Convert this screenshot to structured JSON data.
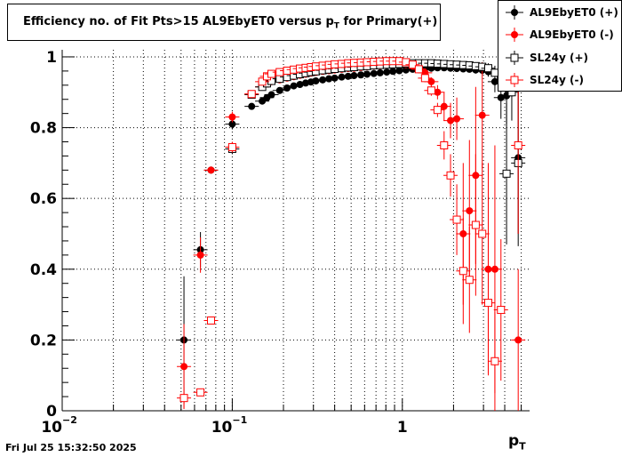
{
  "chart_data": {
    "type": "scatter",
    "title_main": "Efficiency no. of Fit Pts>15 AL9EbyET0 versus p",
    "title_sub": "T",
    "title_tail": " for Primary(+)",
    "xlabel_main": "p",
    "xlabel_sub": "T",
    "x_scale": "log",
    "xlim": [
      0.01,
      5.6
    ],
    "ylim": [
      0,
      1.02
    ],
    "grid": true,
    "legend_position": "top-right",
    "y_ticks": [
      "0",
      "0.2",
      "0.4",
      "0.6",
      "0.8",
      "1"
    ],
    "x_ticks": [
      {
        "base": "10",
        "exp": "−2"
      },
      {
        "base": "10",
        "exp": "−1"
      },
      {
        "base": "1",
        "exp": ""
      }
    ],
    "series": [
      {
        "name": "AL9EbyET0 (+)",
        "color": "#000000",
        "marker": "filled-circle",
        "points": [
          [
            0.052,
            0.2,
            0.18
          ],
          [
            0.065,
            0.455,
            0.05
          ],
          [
            0.075,
            0.68,
            0.01
          ],
          [
            0.1,
            0.81,
            0.015
          ],
          [
            0.13,
            0.86,
            0.008
          ],
          [
            0.15,
            0.875,
            0.006
          ],
          [
            0.16,
            0.885,
            0.005
          ],
          [
            0.17,
            0.893,
            0.005
          ],
          [
            0.19,
            0.905,
            0.004
          ],
          [
            0.21,
            0.912,
            0.004
          ],
          [
            0.23,
            0.918,
            0.004
          ],
          [
            0.25,
            0.922,
            0.004
          ],
          [
            0.27,
            0.926,
            0.004
          ],
          [
            0.29,
            0.929,
            0.004
          ],
          [
            0.31,
            0.932,
            0.004
          ],
          [
            0.34,
            0.935,
            0.004
          ],
          [
            0.37,
            0.938,
            0.004
          ],
          [
            0.4,
            0.94,
            0.004
          ],
          [
            0.44,
            0.943,
            0.004
          ],
          [
            0.48,
            0.945,
            0.004
          ],
          [
            0.52,
            0.947,
            0.004
          ],
          [
            0.57,
            0.949,
            0.004
          ],
          [
            0.62,
            0.951,
            0.004
          ],
          [
            0.68,
            0.953,
            0.004
          ],
          [
            0.74,
            0.955,
            0.004
          ],
          [
            0.81,
            0.957,
            0.004
          ],
          [
            0.88,
            0.959,
            0.004
          ],
          [
            0.96,
            0.961,
            0.004
          ],
          [
            1.05,
            0.963,
            0.004
          ],
          [
            1.15,
            0.965,
            0.004
          ],
          [
            1.25,
            0.966,
            0.004
          ],
          [
            1.36,
            0.967,
            0.005
          ],
          [
            1.48,
            0.968,
            0.005
          ],
          [
            1.61,
            0.969,
            0.005
          ],
          [
            1.76,
            0.969,
            0.006
          ],
          [
            1.92,
            0.968,
            0.006
          ],
          [
            2.09,
            0.967,
            0.007
          ],
          [
            2.28,
            0.966,
            0.008
          ],
          [
            2.48,
            0.965,
            0.009
          ],
          [
            2.7,
            0.963,
            0.01
          ],
          [
            2.95,
            0.962,
            0.012
          ],
          [
            3.2,
            0.958,
            0.014
          ],
          [
            3.5,
            0.93,
            0.03
          ],
          [
            3.8,
            0.885,
            0.06
          ],
          [
            4.1,
            0.89,
            0.08
          ],
          [
            4.4,
            0.965,
            0.05
          ],
          [
            4.8,
            0.715,
            0.25
          ]
        ]
      },
      {
        "name": "AL9EbyET0 (-)",
        "color": "#ff0000",
        "marker": "filled-circle",
        "points": [
          [
            0.052,
            0.125,
            0.12
          ],
          [
            0.065,
            0.44,
            0.05
          ],
          [
            0.075,
            0.68,
            0.01
          ],
          [
            0.1,
            0.83,
            0.015
          ],
          [
            0.13,
            0.895,
            0.008
          ],
          [
            0.15,
            0.915,
            0.006
          ],
          [
            0.16,
            0.925,
            0.005
          ],
          [
            0.17,
            0.93,
            0.005
          ],
          [
            0.19,
            0.935,
            0.005
          ],
          [
            0.21,
            0.94,
            0.004
          ],
          [
            0.23,
            0.944,
            0.004
          ],
          [
            0.25,
            0.948,
            0.004
          ],
          [
            0.27,
            0.951,
            0.004
          ],
          [
            0.29,
            0.954,
            0.004
          ],
          [
            0.31,
            0.956,
            0.004
          ],
          [
            0.34,
            0.959,
            0.004
          ],
          [
            0.37,
            0.961,
            0.004
          ],
          [
            0.4,
            0.963,
            0.004
          ],
          [
            0.44,
            0.965,
            0.004
          ],
          [
            0.48,
            0.967,
            0.004
          ],
          [
            0.52,
            0.968,
            0.004
          ],
          [
            0.57,
            0.97,
            0.004
          ],
          [
            0.62,
            0.972,
            0.004
          ],
          [
            0.68,
            0.974,
            0.004
          ],
          [
            0.74,
            0.975,
            0.004
          ],
          [
            0.81,
            0.977,
            0.004
          ],
          [
            0.88,
            0.979,
            0.004
          ],
          [
            0.96,
            0.98,
            0.004
          ],
          [
            1.05,
            0.978,
            0.005
          ],
          [
            1.15,
            0.974,
            0.006
          ],
          [
            1.25,
            0.966,
            0.007
          ],
          [
            1.36,
            0.955,
            0.008
          ],
          [
            1.48,
            0.93,
            0.012
          ],
          [
            1.61,
            0.9,
            0.02
          ],
          [
            1.76,
            0.86,
            0.04
          ],
          [
            1.92,
            0.82,
            0.05
          ],
          [
            2.09,
            0.825,
            0.06
          ],
          [
            2.28,
            0.5,
            0.2
          ],
          [
            2.48,
            0.565,
            0.2
          ],
          [
            2.7,
            0.665,
            0.25
          ],
          [
            2.95,
            0.835,
            0.15
          ],
          [
            3.2,
            0.4,
            0.3
          ],
          [
            3.5,
            0.4,
            0.35
          ],
          [
            4.8,
            0.2,
            0.2
          ]
        ]
      },
      {
        "name": "SL24y (+)",
        "color": "#000000",
        "marker": "open-square",
        "points": [
          [
            0.1,
            0.74,
            0.015
          ],
          [
            0.13,
            0.893,
            0.006
          ],
          [
            0.15,
            0.915,
            0.005
          ],
          [
            0.16,
            0.925,
            0.005
          ],
          [
            0.17,
            0.932,
            0.005
          ],
          [
            0.19,
            0.938,
            0.004
          ],
          [
            0.21,
            0.943,
            0.004
          ],
          [
            0.23,
            0.947,
            0.004
          ],
          [
            0.25,
            0.951,
            0.004
          ],
          [
            0.27,
            0.954,
            0.004
          ],
          [
            0.29,
            0.957,
            0.004
          ],
          [
            0.31,
            0.959,
            0.004
          ],
          [
            0.34,
            0.962,
            0.004
          ],
          [
            0.37,
            0.964,
            0.004
          ],
          [
            0.4,
            0.966,
            0.004
          ],
          [
            0.44,
            0.968,
            0.004
          ],
          [
            0.48,
            0.97,
            0.004
          ],
          [
            0.52,
            0.971,
            0.004
          ],
          [
            0.57,
            0.973,
            0.004
          ],
          [
            0.62,
            0.974,
            0.004
          ],
          [
            0.68,
            0.976,
            0.004
          ],
          [
            0.74,
            0.977,
            0.004
          ],
          [
            0.81,
            0.978,
            0.004
          ],
          [
            0.88,
            0.979,
            0.004
          ],
          [
            0.96,
            0.98,
            0.004
          ],
          [
            1.05,
            0.981,
            0.004
          ],
          [
            1.15,
            0.982,
            0.004
          ],
          [
            1.25,
            0.982,
            0.004
          ],
          [
            1.36,
            0.982,
            0.005
          ],
          [
            1.48,
            0.982,
            0.005
          ],
          [
            1.61,
            0.981,
            0.005
          ],
          [
            1.76,
            0.98,
            0.006
          ],
          [
            1.92,
            0.979,
            0.006
          ],
          [
            2.09,
            0.978,
            0.007
          ],
          [
            2.28,
            0.977,
            0.008
          ],
          [
            2.48,
            0.976,
            0.009
          ],
          [
            2.7,
            0.974,
            0.01
          ],
          [
            2.95,
            0.972,
            0.012
          ],
          [
            3.2,
            0.968,
            0.014
          ],
          [
            3.5,
            0.955,
            0.02
          ],
          [
            3.8,
            0.935,
            0.03
          ],
          [
            4.1,
            0.67,
            0.2
          ],
          [
            4.4,
            0.9,
            0.08
          ],
          [
            4.8,
            0.7,
            0.2
          ]
        ]
      },
      {
        "name": "SL24y (-)",
        "color": "#ff0000",
        "marker": "open-square",
        "points": [
          [
            0.052,
            0.036,
            0.03
          ],
          [
            0.065,
            0.052,
            0.01
          ],
          [
            0.075,
            0.255,
            0.01
          ],
          [
            0.1,
            0.745,
            0.015
          ],
          [
            0.13,
            0.895,
            0.008
          ],
          [
            0.15,
            0.93,
            0.006
          ],
          [
            0.16,
            0.945,
            0.005
          ],
          [
            0.17,
            0.952,
            0.005
          ],
          [
            0.19,
            0.957,
            0.004
          ],
          [
            0.21,
            0.961,
            0.004
          ],
          [
            0.23,
            0.964,
            0.004
          ],
          [
            0.25,
            0.967,
            0.004
          ],
          [
            0.27,
            0.969,
            0.004
          ],
          [
            0.29,
            0.971,
            0.004
          ],
          [
            0.31,
            0.973,
            0.004
          ],
          [
            0.34,
            0.975,
            0.004
          ],
          [
            0.37,
            0.977,
            0.004
          ],
          [
            0.4,
            0.979,
            0.004
          ],
          [
            0.44,
            0.98,
            0.004
          ],
          [
            0.48,
            0.982,
            0.004
          ],
          [
            0.52,
            0.983,
            0.004
          ],
          [
            0.57,
            0.984,
            0.004
          ],
          [
            0.62,
            0.985,
            0.004
          ],
          [
            0.68,
            0.986,
            0.004
          ],
          [
            0.74,
            0.987,
            0.004
          ],
          [
            0.81,
            0.988,
            0.004
          ],
          [
            0.88,
            0.988,
            0.004
          ],
          [
            0.96,
            0.988,
            0.004
          ],
          [
            1.05,
            0.985,
            0.005
          ],
          [
            1.15,
            0.978,
            0.006
          ],
          [
            1.25,
            0.965,
            0.007
          ],
          [
            1.36,
            0.94,
            0.01
          ],
          [
            1.48,
            0.905,
            0.015
          ],
          [
            1.61,
            0.85,
            0.02
          ],
          [
            1.76,
            0.75,
            0.04
          ],
          [
            1.92,
            0.665,
            0.06
          ],
          [
            2.09,
            0.54,
            0.1
          ],
          [
            2.28,
            0.395,
            0.15
          ],
          [
            2.48,
            0.37,
            0.15
          ],
          [
            2.7,
            0.525,
            0.2
          ],
          [
            2.95,
            0.5,
            0.2
          ],
          [
            3.2,
            0.305,
            0.2
          ],
          [
            3.5,
            0.14,
            0.14
          ],
          [
            3.8,
            0.285,
            0.2
          ],
          [
            4.8,
            0.75,
            0.25
          ]
        ]
      }
    ]
  },
  "footer": {
    "timestamp": "Fri Jul 25 15:32:50 2025"
  }
}
